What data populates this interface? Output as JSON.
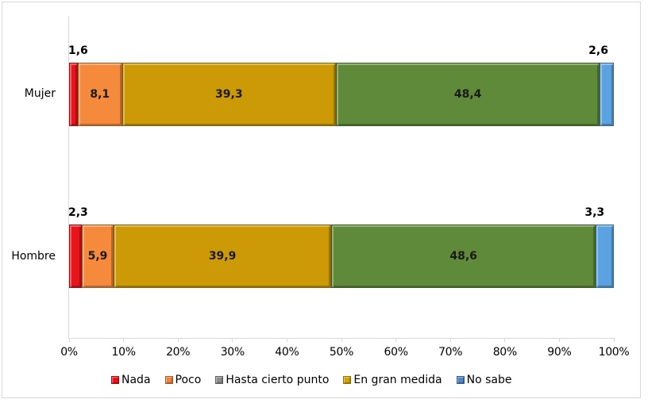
{
  "chart_data": {
    "type": "bar",
    "orientation": "horizontal",
    "stacked": "percent",
    "title": "",
    "xlabel": "",
    "ylabel": "",
    "xlim": [
      0,
      100
    ],
    "x_ticks": [
      "0%",
      "10%",
      "20%",
      "30%",
      "40%",
      "50%",
      "60%",
      "70%",
      "80%",
      "90%",
      "100%"
    ],
    "categories": [
      "Mujer",
      "Hombre"
    ],
    "series": [
      {
        "name": "Nada",
        "color": "#e8141b",
        "values": [
          1.6,
          2.3
        ],
        "labels": [
          "1,6",
          "2,3"
        ]
      },
      {
        "name": "Poco",
        "color": "#f58a3c",
        "values": [
          8.1,
          5.9
        ],
        "labels": [
          "8,1",
          "5,9"
        ]
      },
      {
        "name": "Hasta cierto punto",
        "color": "#cc9a06",
        "values": [
          39.3,
          39.9
        ],
        "labels": [
          "39,3",
          "39,9"
        ]
      },
      {
        "name": "En gran medida",
        "color": "#5f8a3a",
        "values": [
          48.4,
          48.6
        ],
        "labels": [
          "48,4",
          "48,6"
        ]
      },
      {
        "name": "No sabe",
        "color": "#5ba3e0",
        "values": [
          2.6,
          3.3
        ],
        "labels": [
          "2,6",
          "3,3"
        ]
      }
    ],
    "legend": {
      "position": "bottom",
      "entries": [
        {
          "label": "Nada",
          "color": "#e8141b"
        },
        {
          "label": "Poco",
          "color": "#e8843c"
        },
        {
          "label": "Hasta cierto punto",
          "color": "#8c8c8c"
        },
        {
          "label": "En gran medida",
          "color": "#d4a20a"
        },
        {
          "label": "No sabe",
          "color": "#4f86c6"
        }
      ]
    },
    "grid": false
  }
}
